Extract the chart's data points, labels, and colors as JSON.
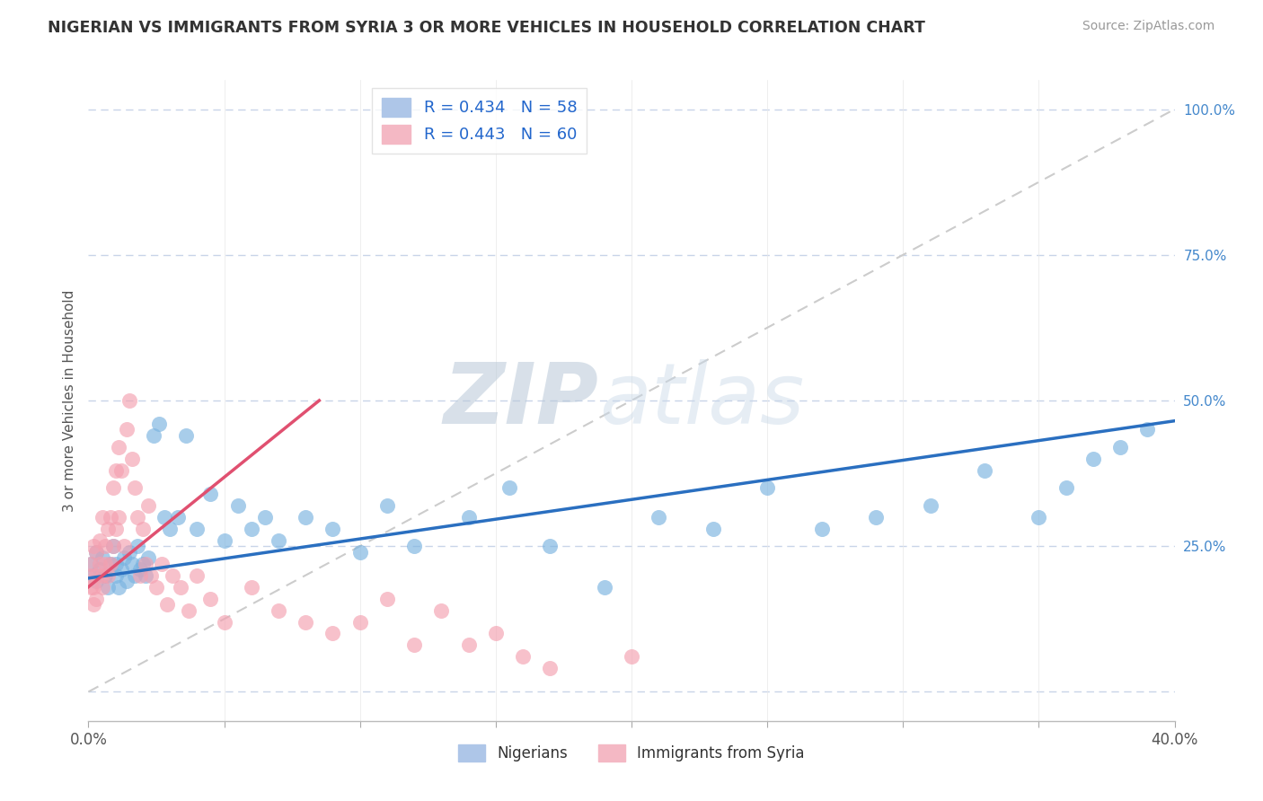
{
  "title": "NIGERIAN VS IMMIGRANTS FROM SYRIA 3 OR MORE VEHICLES IN HOUSEHOLD CORRELATION CHART",
  "source": "Source: ZipAtlas.com",
  "ylabel": "3 or more Vehicles in Household",
  "xlim": [
    0.0,
    0.4
  ],
  "ylim": [
    -0.05,
    1.05
  ],
  "nigerian_R": 0.434,
  "nigerian_N": 58,
  "syria_R": 0.443,
  "syria_N": 60,
  "nigerians_label": "Nigerians",
  "syria_label": "Immigrants from Syria",
  "nigerian_color": "#7ab3e0",
  "syria_color": "#f4a0b0",
  "nigerian_line_color": "#2a6fc0",
  "syria_line_color": "#e05070",
  "diagonal_color": "#cccccc",
  "watermark_zip": "ZIP",
  "watermark_atlas": "atlas",
  "background_color": "#ffffff",
  "grid_color": "#c8d4e8",
  "nigerian_x": [
    0.001,
    0.002,
    0.003,
    0.003,
    0.004,
    0.005,
    0.006,
    0.007,
    0.008,
    0.009,
    0.01,
    0.01,
    0.011,
    0.012,
    0.013,
    0.014,
    0.015,
    0.016,
    0.017,
    0.018,
    0.019,
    0.02,
    0.021,
    0.022,
    0.024,
    0.026,
    0.028,
    0.03,
    0.033,
    0.036,
    0.04,
    0.045,
    0.05,
    0.055,
    0.06,
    0.065,
    0.07,
    0.08,
    0.09,
    0.1,
    0.11,
    0.12,
    0.14,
    0.155,
    0.17,
    0.19,
    0.21,
    0.23,
    0.25,
    0.27,
    0.29,
    0.31,
    0.33,
    0.35,
    0.36,
    0.37,
    0.38,
    0.39
  ],
  "nigerian_y": [
    0.22,
    0.2,
    0.24,
    0.19,
    0.21,
    0.23,
    0.2,
    0.18,
    0.22,
    0.25,
    0.2,
    0.22,
    0.18,
    0.21,
    0.23,
    0.19,
    0.24,
    0.22,
    0.2,
    0.25,
    0.21,
    0.22,
    0.2,
    0.23,
    0.44,
    0.46,
    0.3,
    0.28,
    0.3,
    0.44,
    0.28,
    0.34,
    0.26,
    0.32,
    0.28,
    0.3,
    0.26,
    0.3,
    0.28,
    0.24,
    0.32,
    0.25,
    0.3,
    0.35,
    0.25,
    0.18,
    0.3,
    0.28,
    0.35,
    0.28,
    0.3,
    0.32,
    0.38,
    0.3,
    0.35,
    0.4,
    0.42,
    0.45
  ],
  "syria_x": [
    0.001,
    0.001,
    0.001,
    0.002,
    0.002,
    0.002,
    0.003,
    0.003,
    0.003,
    0.004,
    0.004,
    0.005,
    0.005,
    0.005,
    0.006,
    0.006,
    0.007,
    0.007,
    0.008,
    0.008,
    0.009,
    0.009,
    0.01,
    0.01,
    0.011,
    0.011,
    0.012,
    0.013,
    0.014,
    0.015,
    0.016,
    0.017,
    0.018,
    0.019,
    0.02,
    0.021,
    0.022,
    0.023,
    0.025,
    0.027,
    0.029,
    0.031,
    0.034,
    0.037,
    0.04,
    0.045,
    0.05,
    0.06,
    0.07,
    0.08,
    0.09,
    0.1,
    0.11,
    0.12,
    0.13,
    0.14,
    0.15,
    0.16,
    0.17,
    0.2
  ],
  "syria_y": [
    0.18,
    0.22,
    0.2,
    0.15,
    0.25,
    0.18,
    0.2,
    0.24,
    0.16,
    0.22,
    0.26,
    0.18,
    0.3,
    0.2,
    0.22,
    0.25,
    0.28,
    0.2,
    0.3,
    0.22,
    0.25,
    0.35,
    0.28,
    0.38,
    0.3,
    0.42,
    0.38,
    0.25,
    0.45,
    0.5,
    0.4,
    0.35,
    0.3,
    0.2,
    0.28,
    0.22,
    0.32,
    0.2,
    0.18,
    0.22,
    0.15,
    0.2,
    0.18,
    0.14,
    0.2,
    0.16,
    0.12,
    0.18,
    0.14,
    0.12,
    0.1,
    0.12,
    0.16,
    0.08,
    0.14,
    0.08,
    0.1,
    0.06,
    0.04,
    0.06
  ],
  "nig_line_x0": 0.0,
  "nig_line_y0": 0.195,
  "nig_line_x1": 0.4,
  "nig_line_y1": 0.465,
  "syr_line_x0": 0.0,
  "syr_line_y0": 0.18,
  "syr_line_x1": 0.085,
  "syr_line_y1": 0.5
}
